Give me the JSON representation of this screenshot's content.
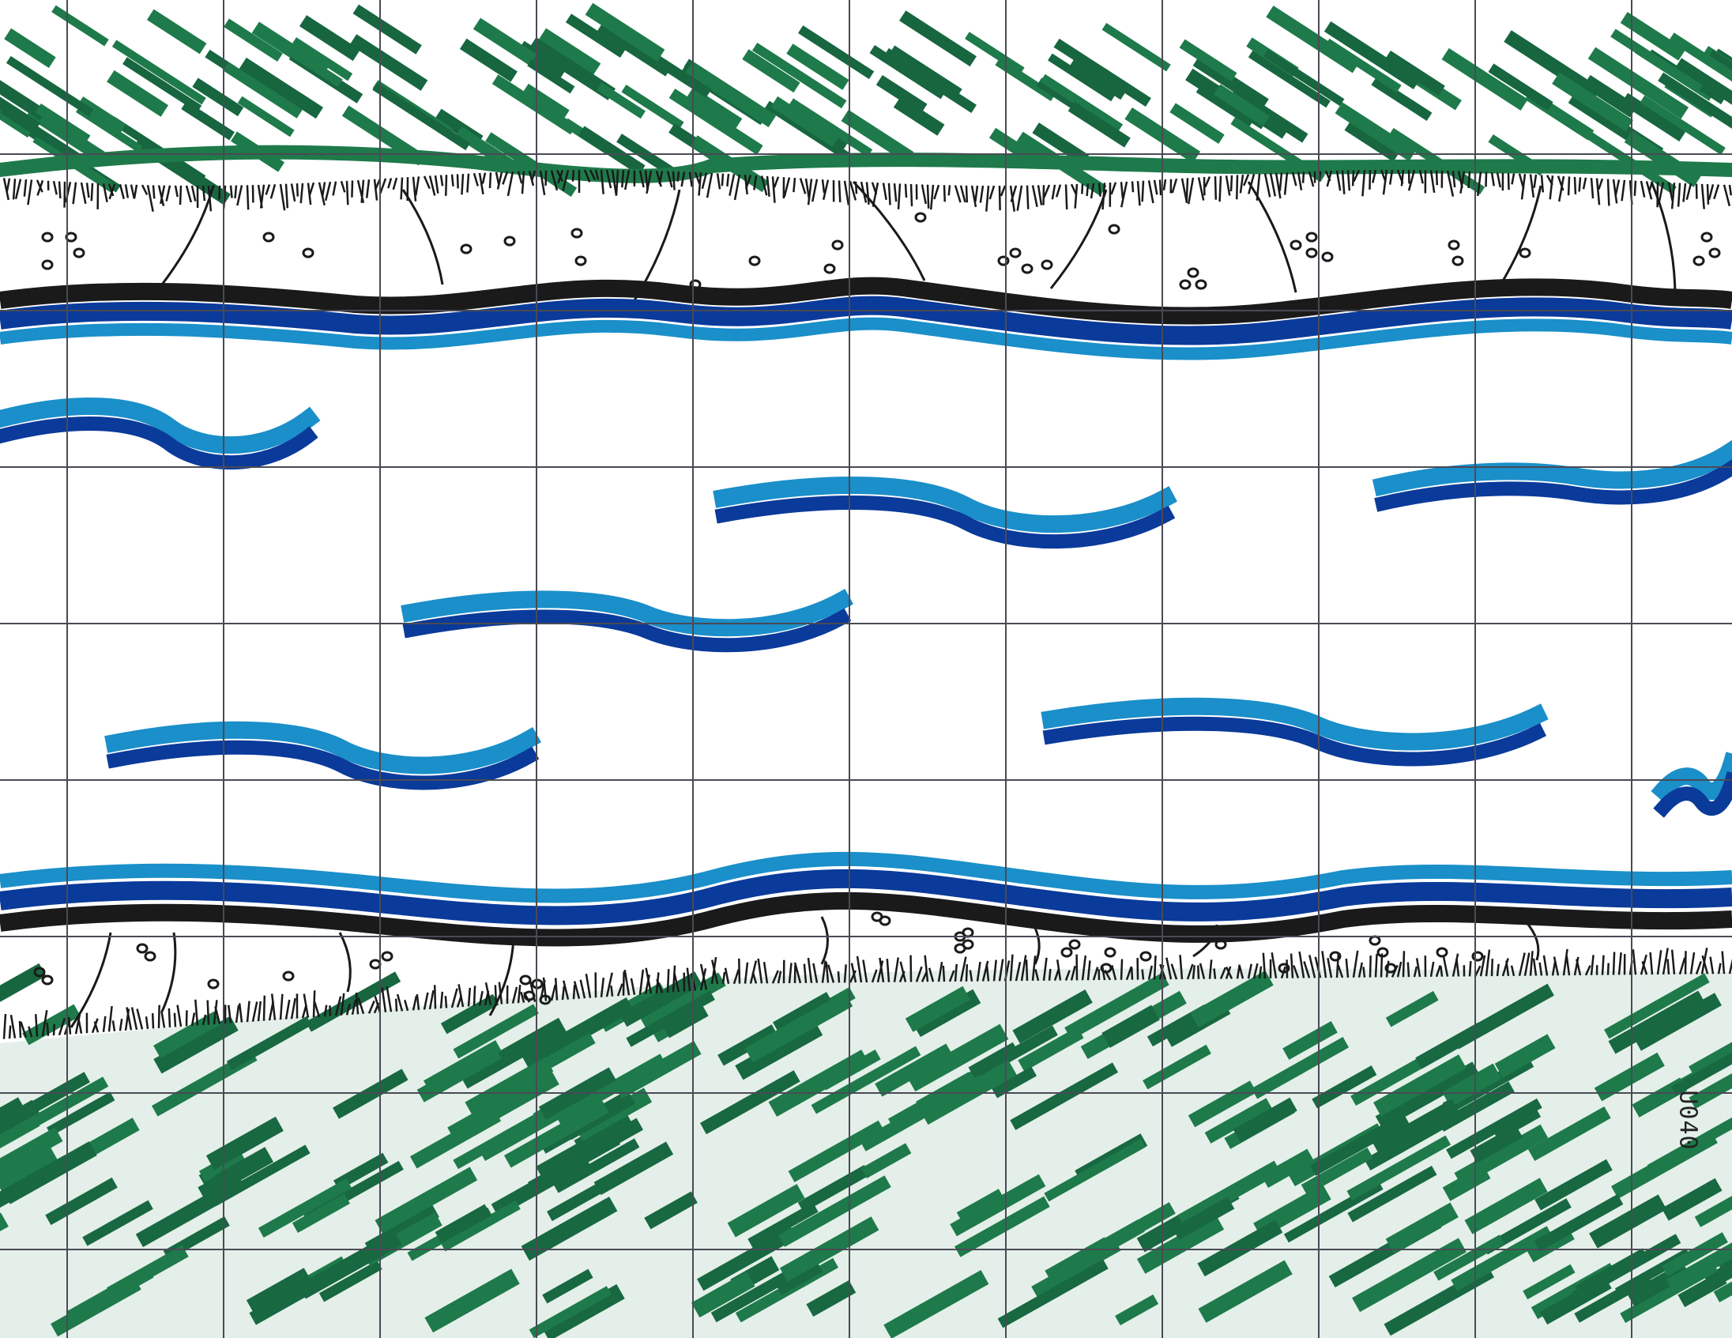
{
  "drawing": {
    "code": "U040",
    "colors": {
      "grass": "#1e7a4a",
      "grass_dark": "#176640",
      "ink": "#1a1a1a",
      "water_light": "#1a8fc9",
      "water_dark": "#0a3a9a",
      "grid": "#4a4a55",
      "paper": "#ffffff"
    },
    "grid": {
      "columns": 11,
      "rows": 8
    }
  }
}
